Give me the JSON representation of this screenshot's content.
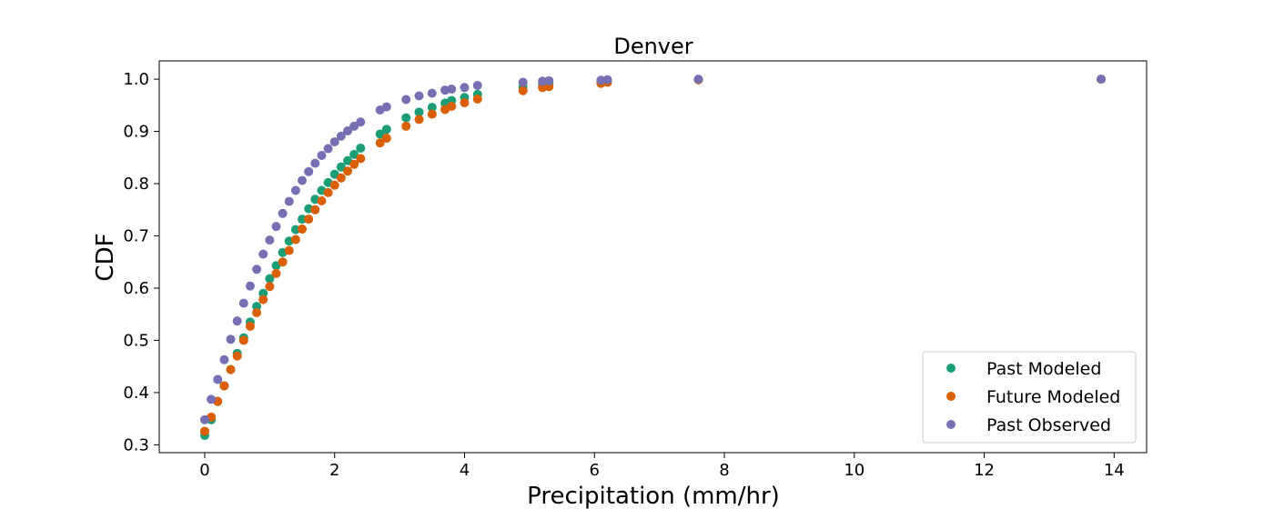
{
  "chart_data": {
    "type": "scatter",
    "title": "Denver",
    "xlabel": "Precipitation (mm/hr)",
    "ylabel": "CDF",
    "xlim": [
      -0.7,
      14.5
    ],
    "ylim": [
      0.285,
      1.035
    ],
    "xticks": [
      0,
      2,
      4,
      6,
      8,
      10,
      12,
      14
    ],
    "yticks": [
      0.3,
      0.4,
      0.5,
      0.6,
      0.7,
      0.8,
      0.9,
      1.0
    ],
    "xtick_labels": [
      "0",
      "2",
      "4",
      "6",
      "8",
      "10",
      "12",
      "14"
    ],
    "ytick_labels": [
      "0.3",
      "0.4",
      "0.5",
      "0.6",
      "0.7",
      "0.8",
      "0.9",
      "1.0"
    ],
    "grid": false,
    "legend_position": "bottom-right",
    "series": [
      {
        "name": "Past Modeled",
        "color": "#1b9e77",
        "x": [
          0.0,
          0.1,
          0.2,
          0.3,
          0.4,
          0.5,
          0.6,
          0.7,
          0.8,
          0.9,
          1.0,
          1.1,
          1.2,
          1.3,
          1.4,
          1.5,
          1.6,
          1.7,
          1.8,
          1.9,
          2.0,
          2.1,
          2.2,
          2.3,
          2.4,
          2.7,
          2.8,
          3.1,
          3.3,
          3.5,
          3.7,
          3.8,
          4.0,
          4.2,
          4.9,
          5.2,
          5.3,
          6.1,
          6.2,
          7.6,
          13.8
        ],
        "y": [
          0.318,
          0.348,
          0.383,
          0.413,
          0.444,
          0.475,
          0.505,
          0.535,
          0.565,
          0.59,
          0.618,
          0.643,
          0.668,
          0.69,
          0.712,
          0.732,
          0.752,
          0.77,
          0.787,
          0.802,
          0.818,
          0.832,
          0.844,
          0.856,
          0.868,
          0.895,
          0.904,
          0.926,
          0.937,
          0.946,
          0.954,
          0.959,
          0.965,
          0.971,
          0.985,
          0.99,
          0.992,
          0.996,
          0.997,
          0.999,
          1.0
        ]
      },
      {
        "name": "Future Modeled",
        "color": "#d95f02",
        "x": [
          0.0,
          0.1,
          0.2,
          0.3,
          0.4,
          0.5,
          0.6,
          0.7,
          0.8,
          0.9,
          1.0,
          1.1,
          1.2,
          1.3,
          1.4,
          1.5,
          1.6,
          1.7,
          1.8,
          1.9,
          2.0,
          2.1,
          2.2,
          2.3,
          2.4,
          2.7,
          2.8,
          3.1,
          3.3,
          3.5,
          3.7,
          3.8,
          4.0,
          4.2,
          4.9,
          5.2,
          5.3,
          6.1,
          6.2,
          7.6,
          13.8
        ],
        "y": [
          0.326,
          0.353,
          0.383,
          0.413,
          0.444,
          0.47,
          0.5,
          0.527,
          0.553,
          0.578,
          0.603,
          0.628,
          0.65,
          0.672,
          0.693,
          0.713,
          0.732,
          0.75,
          0.767,
          0.783,
          0.797,
          0.811,
          0.824,
          0.837,
          0.848,
          0.878,
          0.887,
          0.91,
          0.923,
          0.933,
          0.942,
          0.948,
          0.955,
          0.962,
          0.978,
          0.984,
          0.986,
          0.992,
          0.994,
          0.999,
          1.0
        ]
      },
      {
        "name": "Past Observed",
        "color": "#7570b3",
        "x": [
          0.0,
          0.1,
          0.2,
          0.3,
          0.4,
          0.5,
          0.6,
          0.7,
          0.8,
          0.9,
          1.0,
          1.1,
          1.2,
          1.3,
          1.4,
          1.5,
          1.6,
          1.7,
          1.8,
          1.9,
          2.0,
          2.1,
          2.2,
          2.3,
          2.4,
          2.7,
          2.8,
          3.1,
          3.3,
          3.5,
          3.7,
          3.8,
          4.0,
          4.2,
          4.9,
          5.2,
          5.3,
          6.1,
          6.2,
          7.6,
          13.8
        ],
        "y": [
          0.348,
          0.387,
          0.425,
          0.463,
          0.502,
          0.537,
          0.571,
          0.604,
          0.636,
          0.665,
          0.692,
          0.718,
          0.743,
          0.766,
          0.787,
          0.806,
          0.823,
          0.839,
          0.854,
          0.867,
          0.88,
          0.891,
          0.901,
          0.91,
          0.918,
          0.941,
          0.947,
          0.961,
          0.968,
          0.973,
          0.979,
          0.981,
          0.984,
          0.988,
          0.994,
          0.996,
          0.997,
          0.998,
          0.999,
          1.0,
          1.0
        ]
      }
    ]
  }
}
